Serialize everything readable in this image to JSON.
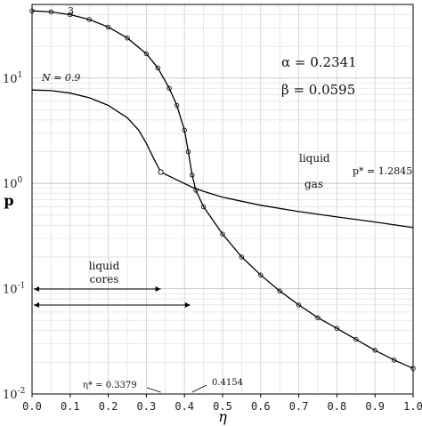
{
  "chart_data": {
    "type": "line",
    "xlabel": "η",
    "ylabel": "p",
    "xlim": [
      0.0,
      1.0
    ],
    "ylim": [
      0.01,
      50
    ],
    "yscale": "log",
    "grid": true,
    "x_ticks": [
      "0.0",
      "0.1",
      "0.2",
      "0.3",
      "0.4",
      "0.5",
      "0.6",
      "0.7",
      "0.8",
      "0.9",
      "1.0"
    ],
    "y_ticks": [
      {
        "value": 10,
        "base": "10",
        "exp": "1"
      },
      {
        "value": 1,
        "base": "10",
        "exp": "0"
      },
      {
        "value": 0.1,
        "base": "10",
        "exp": "-1"
      },
      {
        "value": 0.01,
        "base": "10",
        "exp": "-2"
      }
    ],
    "series": [
      {
        "name": "3",
        "style": "solid-with-markers",
        "points": [
          [
            0.0,
            43.5
          ],
          [
            0.05,
            42.5
          ],
          [
            0.1,
            40.0
          ],
          [
            0.15,
            36.0
          ],
          [
            0.2,
            30.5
          ],
          [
            0.25,
            24.0
          ],
          [
            0.3,
            17.0
          ],
          [
            0.33,
            12.5
          ],
          [
            0.36,
            8.0
          ],
          [
            0.38,
            5.5
          ],
          [
            0.4,
            3.2
          ],
          [
            0.41,
            2.0
          ],
          [
            0.42,
            1.2
          ],
          [
            0.43,
            0.86
          ],
          [
            0.45,
            0.6
          ],
          [
            0.5,
            0.33
          ],
          [
            0.55,
            0.2
          ],
          [
            0.6,
            0.135
          ],
          [
            0.65,
            0.095
          ],
          [
            0.7,
            0.07
          ],
          [
            0.75,
            0.053
          ],
          [
            0.8,
            0.042
          ],
          [
            0.85,
            0.033
          ],
          [
            0.9,
            0.026
          ],
          [
            0.95,
            0.021
          ],
          [
            1.0,
            0.0175
          ]
        ]
      },
      {
        "name": "N = 0.9",
        "style": "solid",
        "points": [
          [
            0.0,
            7.7
          ],
          [
            0.05,
            7.6
          ],
          [
            0.1,
            7.2
          ],
          [
            0.15,
            6.5
          ],
          [
            0.2,
            5.5
          ],
          [
            0.25,
            4.2
          ],
          [
            0.28,
            3.2
          ],
          [
            0.3,
            2.4
          ],
          [
            0.32,
            1.7
          ],
          [
            0.3379,
            1.28
          ],
          [
            0.38,
            1.08
          ],
          [
            0.42,
            0.92
          ],
          [
            0.45,
            0.84
          ],
          [
            0.5,
            0.74
          ],
          [
            0.6,
            0.62
          ],
          [
            0.7,
            0.54
          ],
          [
            0.8,
            0.48
          ],
          [
            0.9,
            0.43
          ],
          [
            1.0,
            0.38
          ]
        ]
      }
    ],
    "annotations": {
      "alpha": "α = 0.2341",
      "beta": "β = 0.0595",
      "liquid": "liquid",
      "gas": "gas",
      "p_star": "p* = 1.2845",
      "liquid_cores_line1": "liquid",
      "liquid_cores_line2": "cores",
      "eta_star_1": "η* = 0.3379",
      "eta_star_2": "0.4154",
      "liquid_cores_range_1": [
        0.0,
        0.3379
      ],
      "liquid_cores_range_2": [
        0.0,
        0.4154
      ]
    }
  }
}
